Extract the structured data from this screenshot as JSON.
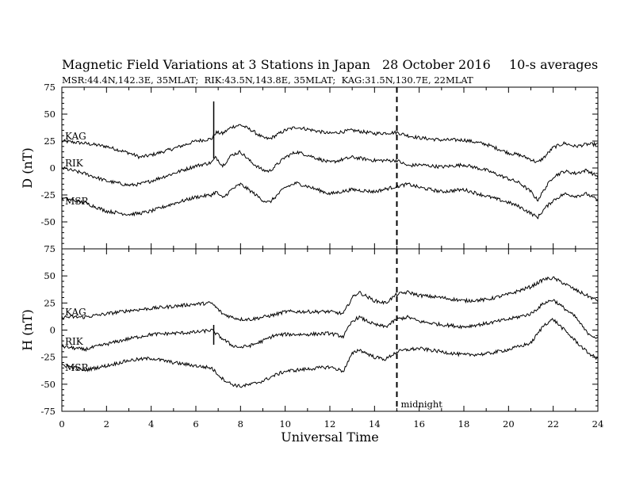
{
  "header": {
    "title": "Magnetic Field Variations at 3 Stations in Japan",
    "date": "28 October 2016",
    "averages": "10-s averages",
    "stations": "MSR:44.4N,142.3E, 35MLAT;  RIK:43.5N,143.8E, 35MLAT;  KAG:31.5N,130.7E, 22MLAT"
  },
  "chart_data": [
    {
      "type": "line",
      "panel": "D",
      "ylabel": "D (nT)",
      "xlim": [
        0,
        24
      ],
      "ylim": [
        -75,
        75
      ],
      "yticks": [
        75,
        50,
        25,
        0,
        -25,
        -50,
        -75
      ],
      "series": [
        {
          "name": "KAG",
          "x": [
            0,
            1,
            2,
            3,
            3.5,
            4,
            5,
            6,
            6.7,
            6.9,
            7.2,
            7.6,
            8,
            8.5,
            9,
            9.3,
            10,
            10.5,
            11,
            12,
            13,
            14,
            15,
            15.5,
            16,
            17,
            18,
            19,
            20,
            20.5,
            21,
            21.3,
            21.6,
            22,
            22.5,
            23,
            23.5,
            24
          ],
          "y": [
            25,
            23,
            20,
            14,
            10,
            12,
            18,
            25,
            27,
            33,
            32,
            38,
            40,
            35,
            28,
            27,
            35,
            38,
            36,
            32,
            35,
            32,
            33,
            30,
            28,
            26,
            26,
            22,
            14,
            12,
            8,
            5,
            10,
            19,
            23,
            20,
            22,
            22
          ]
        },
        {
          "name": "RIK",
          "x": [
            0,
            1,
            2,
            3,
            3.5,
            4,
            5,
            6,
            6.7,
            6.9,
            7.2,
            7.6,
            8,
            8.5,
            9,
            9.3,
            10,
            10.5,
            11,
            12,
            13,
            14,
            15,
            15.5,
            16,
            17,
            18,
            19,
            20,
            20.5,
            21,
            21.3,
            21.6,
            22,
            22.5,
            23,
            23.5,
            24
          ],
          "y": [
            0,
            -5,
            -12,
            -16,
            -15,
            -12,
            -5,
            2,
            5,
            10,
            2,
            12,
            15,
            5,
            -2,
            -3,
            10,
            15,
            12,
            5,
            10,
            7,
            7,
            2,
            3,
            1,
            3,
            -2,
            -10,
            -14,
            -22,
            -30,
            -20,
            -8,
            -3,
            -5,
            -2,
            -8
          ]
        },
        {
          "name": "MSR",
          "x": [
            0,
            1,
            2,
            3,
            3.5,
            4,
            5,
            6,
            6.7,
            6.9,
            7.2,
            7.6,
            8,
            8.5,
            9,
            9.3,
            10,
            10.5,
            11,
            12,
            13,
            14,
            15,
            15.5,
            16,
            17,
            18,
            19,
            20,
            20.5,
            21,
            21.3,
            21.6,
            22,
            22.5,
            23,
            23.5,
            24
          ],
          "y": [
            -28,
            -32,
            -40,
            -43,
            -42,
            -40,
            -33,
            -27,
            -25,
            -22,
            -28,
            -20,
            -15,
            -22,
            -30,
            -32,
            -18,
            -14,
            -17,
            -24,
            -20,
            -22,
            -17,
            -15,
            -18,
            -22,
            -20,
            -26,
            -32,
            -36,
            -42,
            -46,
            -38,
            -30,
            -24,
            -26,
            -24,
            -30
          ]
        }
      ]
    },
    {
      "type": "line",
      "panel": "H",
      "ylabel": "H (nT)",
      "xlabel": "Universal Time",
      "xlim": [
        0,
        24
      ],
      "ylim": [
        -75,
        75
      ],
      "xticks": [
        0,
        2,
        4,
        6,
        8,
        10,
        12,
        14,
        16,
        18,
        20,
        22,
        24
      ],
      "yticks": [
        75,
        50,
        25,
        0,
        -25,
        -50,
        -75
      ],
      "annotation": {
        "x": 15,
        "text": "midnight"
      },
      "series": [
        {
          "name": "KAG",
          "x": [
            0,
            1,
            2,
            3,
            4,
            5,
            6,
            6.7,
            7.2,
            7.6,
            8,
            8.5,
            9,
            9.5,
            10,
            11,
            12,
            12.6,
            13,
            13.3,
            14,
            14.5,
            15,
            15.5,
            16,
            17,
            18,
            19,
            20,
            21,
            21.6,
            22,
            22.5,
            23,
            23.5,
            24
          ],
          "y": [
            12,
            12,
            15,
            18,
            20,
            22,
            24,
            25,
            15,
            12,
            10,
            10,
            12,
            14,
            17,
            17,
            17,
            15,
            30,
            35,
            27,
            25,
            33,
            35,
            32,
            30,
            27,
            28,
            33,
            40,
            47,
            48,
            43,
            37,
            32,
            27
          ]
        },
        {
          "name": "RIK",
          "x": [
            0,
            1,
            2,
            3,
            4,
            5,
            6,
            6.7,
            7.2,
            7.6,
            8,
            8.5,
            9,
            9.5,
            10,
            11,
            12,
            12.6,
            13,
            13.3,
            14,
            14.5,
            15,
            15.5,
            16,
            17,
            18,
            19,
            20,
            21,
            21.6,
            22,
            22.5,
            23,
            23.5,
            24
          ],
          "y": [
            -15,
            -18,
            -13,
            -8,
            -4,
            -3,
            -2,
            0,
            -8,
            -14,
            -16,
            -14,
            -10,
            -5,
            -4,
            -4,
            -3,
            -6,
            8,
            12,
            5,
            3,
            10,
            12,
            8,
            5,
            3,
            6,
            10,
            15,
            25,
            28,
            20,
            12,
            -2,
            -8
          ]
        },
        {
          "name": "MSR",
          "x": [
            0,
            1,
            2,
            3,
            4,
            5,
            6,
            6.7,
            7.2,
            7.6,
            8,
            8.5,
            9,
            9.5,
            10,
            11,
            12,
            12.6,
            13,
            13.3,
            14,
            14.5,
            15,
            15.5,
            16,
            17,
            18,
            19,
            20,
            21,
            21.6,
            22,
            22.5,
            23,
            23.5,
            24
          ],
          "y": [
            -32,
            -37,
            -33,
            -28,
            -26,
            -30,
            -33,
            -35,
            -45,
            -50,
            -52,
            -50,
            -47,
            -42,
            -38,
            -36,
            -34,
            -38,
            -22,
            -18,
            -25,
            -27,
            -20,
            -18,
            -17,
            -20,
            -23,
            -22,
            -18,
            -12,
            5,
            10,
            0,
            -10,
            -20,
            -27
          ]
        }
      ]
    }
  ]
}
